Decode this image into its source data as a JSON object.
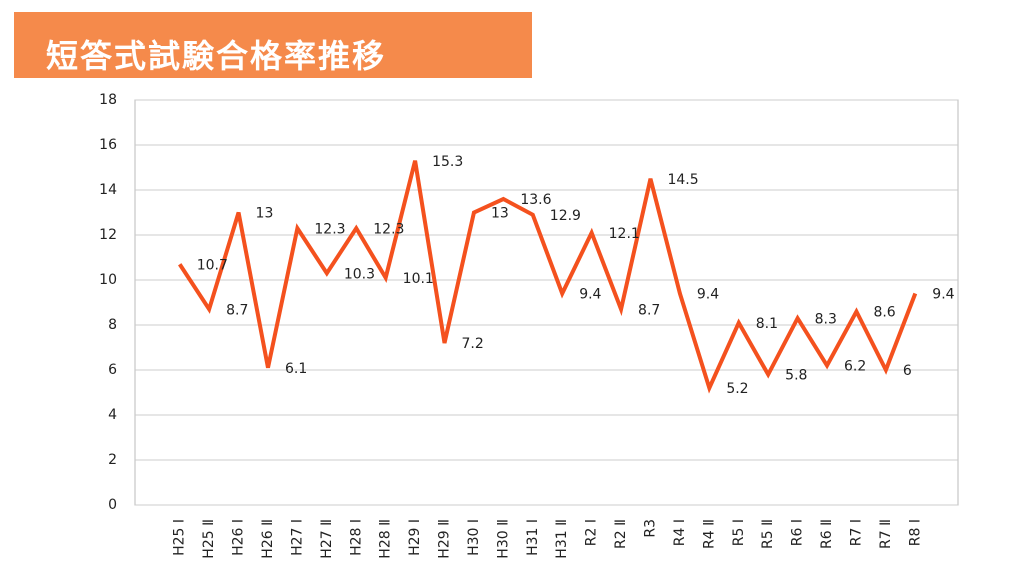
{
  "chart_data": {
    "type": "line",
    "title": "短答式試験合格率推移",
    "categories": [
      "H25 Ⅰ",
      "H25 Ⅱ",
      "H26 Ⅰ",
      "H26 Ⅱ",
      "H27 Ⅰ",
      "H27 Ⅱ",
      "H28 Ⅰ",
      "H28 Ⅱ",
      "H29 Ⅰ",
      "H29 Ⅱ",
      "H30 Ⅰ",
      "H30 Ⅱ",
      "H31 Ⅰ",
      "H31 Ⅱ",
      "R2 Ⅰ",
      "R2 Ⅱ",
      "R3",
      "R4 Ⅰ",
      "R4 Ⅱ",
      "R5 Ⅰ",
      "R5 Ⅱ",
      "R6 Ⅰ",
      "R6 Ⅱ",
      "R7 Ⅰ",
      "R7 Ⅱ",
      "R8 Ⅰ"
    ],
    "values": [
      10.7,
      8.7,
      13,
      6.1,
      12.3,
      10.3,
      12.3,
      10.1,
      15.3,
      7.2,
      13,
      13.6,
      12.9,
      9.4,
      12.1,
      8.7,
      14.5,
      9.4,
      5.2,
      8.1,
      5.8,
      8.3,
      6.2,
      8.6,
      6,
      9.4
    ],
    "color": "#f4511e",
    "ylim": [
      0,
      18
    ],
    "yticks": [
      0,
      2,
      4,
      6,
      8,
      10,
      12,
      14,
      16,
      18
    ],
    "grid": true
  }
}
